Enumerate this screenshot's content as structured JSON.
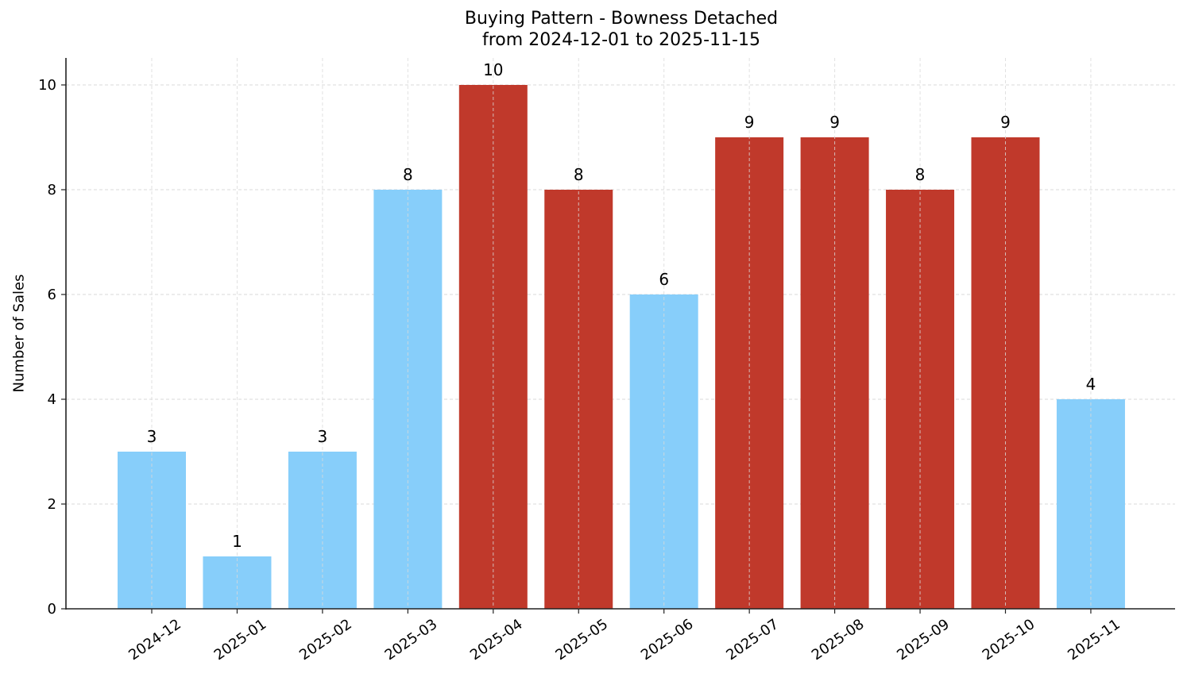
{
  "chart_data": {
    "type": "bar",
    "title": "Buying Pattern - Bowness Detached",
    "subtitle": "from 2024-12-01 to 2025-11-15",
    "xlabel": "",
    "ylabel": "Number of Sales",
    "ylim": [
      0,
      10.5
    ],
    "yticks": [
      0,
      2,
      4,
      6,
      8,
      10
    ],
    "grid": true,
    "legend": null,
    "categories": [
      "2024-12",
      "2025-01",
      "2025-02",
      "2025-03",
      "2025-04",
      "2025-05",
      "2025-06",
      "2025-07",
      "2025-08",
      "2025-09",
      "2025-10",
      "2025-11"
    ],
    "values": [
      3,
      1,
      3,
      8,
      10,
      8,
      6,
      9,
      9,
      8,
      9,
      4
    ],
    "bar_colors": [
      "#87cefa",
      "#87cefa",
      "#87cefa",
      "#87cefa",
      "#c0392b",
      "#c0392b",
      "#87cefa",
      "#c0392b",
      "#c0392b",
      "#c0392b",
      "#c0392b",
      "#87cefa"
    ],
    "colors": {
      "low": "#87cefa",
      "high": "#c0392b"
    }
  }
}
